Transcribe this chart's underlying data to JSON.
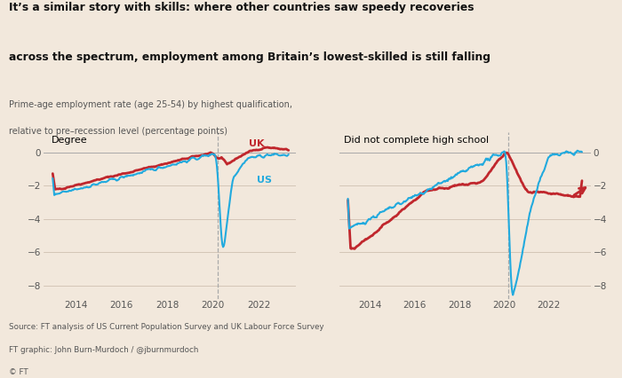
{
  "title_line1": "It’s a similar story with skills: where other countries saw speedy recoveries",
  "title_line2": "across the spectrum, employment among Britain’s lowest-skilled is still falling",
  "subtitle_line1": "Prime-age employment rate (age 25-54) by highest qualification,",
  "subtitle_line2": "relative to pre–recession level (percentage points)",
  "left_panel_title": "Degree",
  "right_panel_title": "Did not complete high school",
  "uk_color": "#c0272d",
  "us_color": "#22aade",
  "bg_color": "#f2e8dc",
  "source_line1": "Source: FT analysis of US Current Population Survey and UK Labour Force Survey",
  "source_line2": "FT graphic: John Burn-Murdoch / @jburnmurdoch",
  "source_line3": "© FT",
  "ylim": [
    -8.8,
    1.2
  ],
  "yticks": [
    0,
    -2,
    -4,
    -6,
    -8
  ],
  "xlim_left": [
    2012.6,
    2023.6
  ],
  "xlim_right": [
    2012.6,
    2023.9
  ],
  "xticks": [
    2014,
    2016,
    2018,
    2020,
    2022
  ],
  "vline_x": 2020.2
}
